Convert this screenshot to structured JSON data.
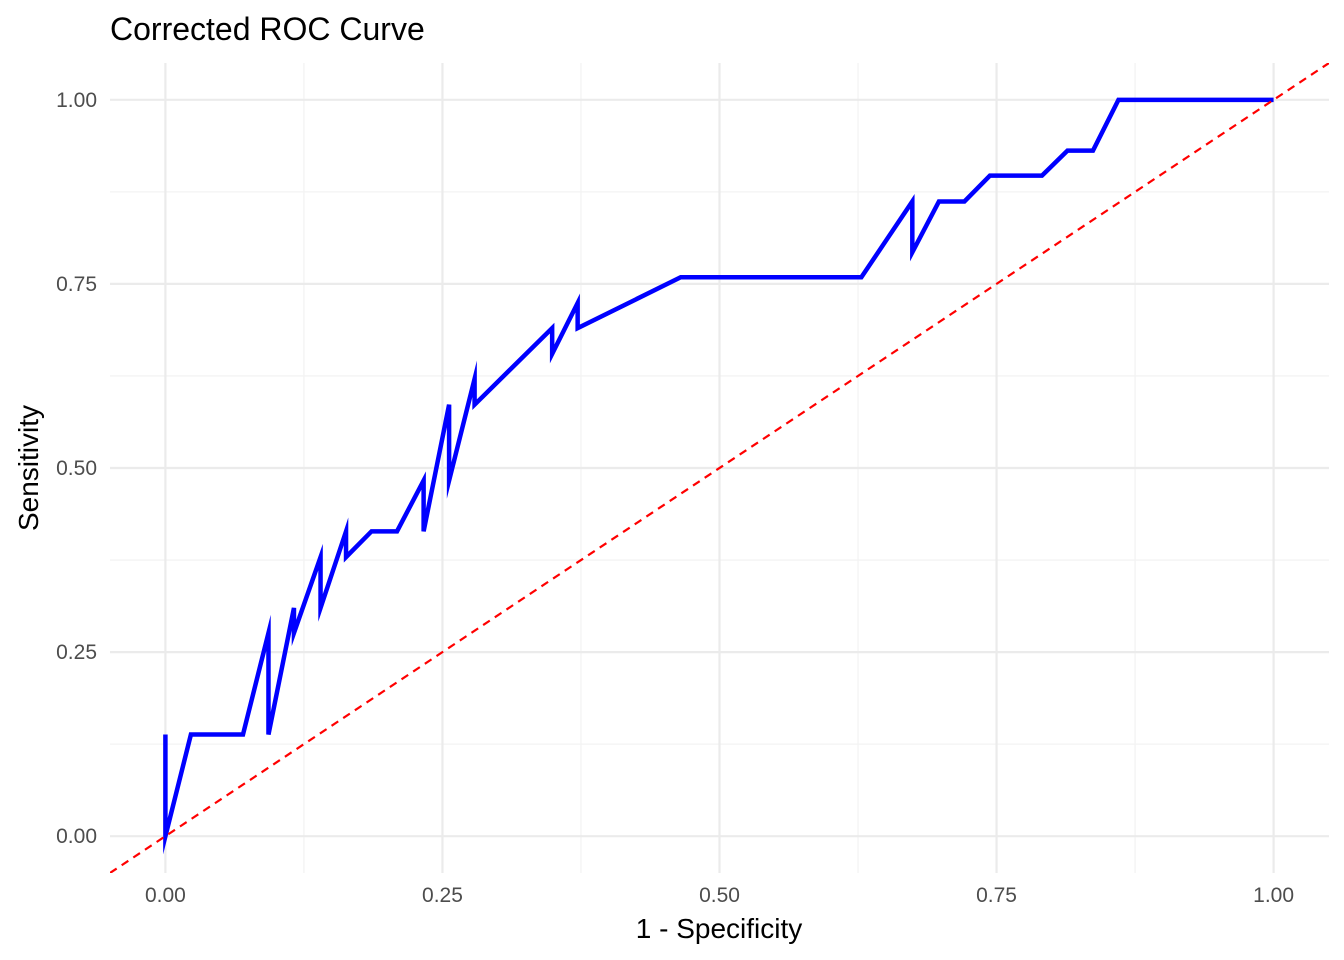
{
  "chart_data": {
    "type": "line",
    "title": "Corrected ROC Curve",
    "xlabel": "1 - Specificity",
    "ylabel": "Sensitivity",
    "xlim": [
      -0.05,
      1.05
    ],
    "ylim": [
      -0.05,
      1.05
    ],
    "x_ticks": [
      "0.00",
      "0.25",
      "0.50",
      "0.75",
      "1.00"
    ],
    "y_ticks": [
      "0.00",
      "0.25",
      "0.50",
      "0.75",
      "1.00"
    ],
    "grid": true,
    "legend": "none",
    "colors": {
      "roc_curve": "#0000ff",
      "reference_line": "#ff0000"
    },
    "series": [
      {
        "x": [
          0.0,
          0.0,
          0.023,
          0.07,
          0.093,
          0.093,
          0.116,
          0.116,
          0.14,
          0.14,
          0.163,
          0.163,
          0.186,
          0.209,
          0.233,
          0.233,
          0.256,
          0.256,
          0.279,
          0.279,
          0.349,
          0.349,
          0.372,
          0.372,
          0.465,
          0.628,
          0.674,
          0.674,
          0.698,
          0.721,
          0.744,
          0.791,
          0.814,
          0.837,
          0.86,
          1.0
        ],
        "y": [
          0.138,
          0.0,
          0.138,
          0.138,
          0.276,
          0.138,
          0.31,
          0.276,
          0.379,
          0.31,
          0.414,
          0.379,
          0.414,
          0.414,
          0.483,
          0.414,
          0.586,
          0.483,
          0.621,
          0.586,
          0.69,
          0.655,
          0.724,
          0.69,
          0.759,
          0.759,
          0.862,
          0.793,
          0.862,
          0.862,
          0.897,
          0.897,
          0.931,
          0.931,
          1.0,
          1.0
        ]
      }
    ],
    "reference_line": {
      "type": "diagonal",
      "slope": 1,
      "intercept": 0,
      "style": "dashed"
    }
  }
}
